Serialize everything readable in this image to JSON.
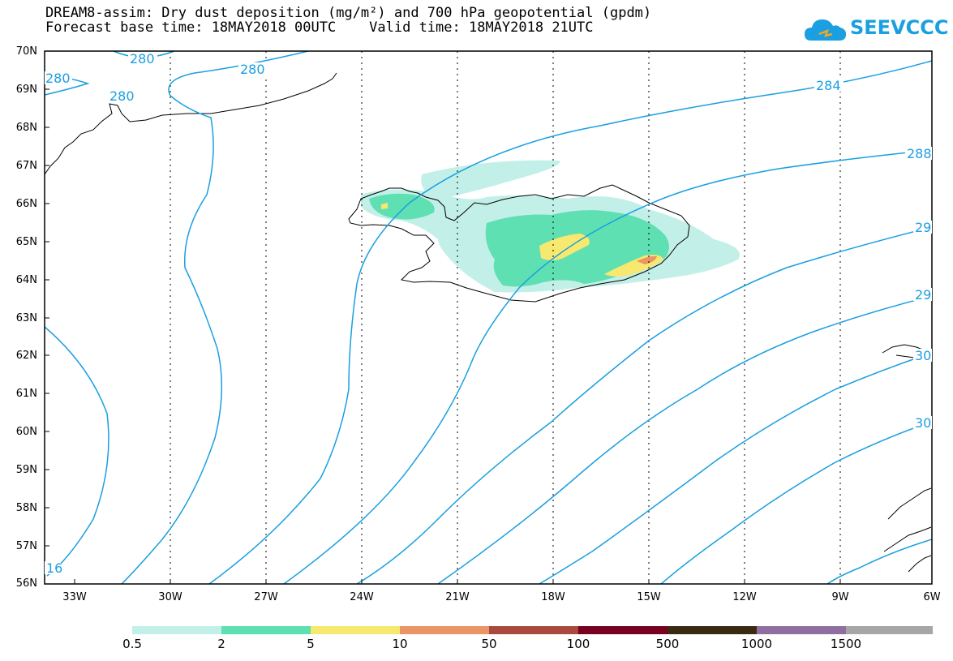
{
  "title_line1": "DREAM8-assim: Dry dust deposition (mg/m²) and 700 hPa geopotential (gpdm)",
  "title_line2": "Forecast base time: 18MAY2018 00UTC    Valid time: 18MAY2018 21UTC",
  "logo_text": "SEEVCCC",
  "lat_labels": [
    "70N",
    "69N",
    "68N",
    "67N",
    "66N",
    "65N",
    "64N",
    "63N",
    "62N",
    "61N",
    "60N",
    "59N",
    "58N",
    "57N",
    "56N"
  ],
  "lon_labels": [
    "33W",
    "30W",
    "27W",
    "24W",
    "21W",
    "18W",
    "15W",
    "12W",
    "9W",
    "6W"
  ],
  "contour_labels": [
    {
      "text": "280"
    },
    {
      "text": "280"
    },
    {
      "text": "280"
    },
    {
      "text": "280"
    },
    {
      "text": "284"
    },
    {
      "text": "288"
    },
    {
      "text": "29"
    },
    {
      "text": "29"
    },
    {
      "text": "30"
    },
    {
      "text": "30"
    },
    {
      "text": "16"
    }
  ],
  "colorbar": {
    "labels": [
      "0.5",
      "2",
      "5",
      "10",
      "50",
      "100",
      "500",
      "1000",
      "1500"
    ],
    "colors": [
      "#c2f0e8",
      "#5ee0b2",
      "#f7e870",
      "#eb9465",
      "#a84b3e",
      "#780020",
      "#3b2a12",
      "#8e6fa0",
      "#a6a6a6"
    ]
  },
  "colors": {
    "contour": "#1a9fe0",
    "coast": "#000000",
    "grid": "#000000"
  }
}
